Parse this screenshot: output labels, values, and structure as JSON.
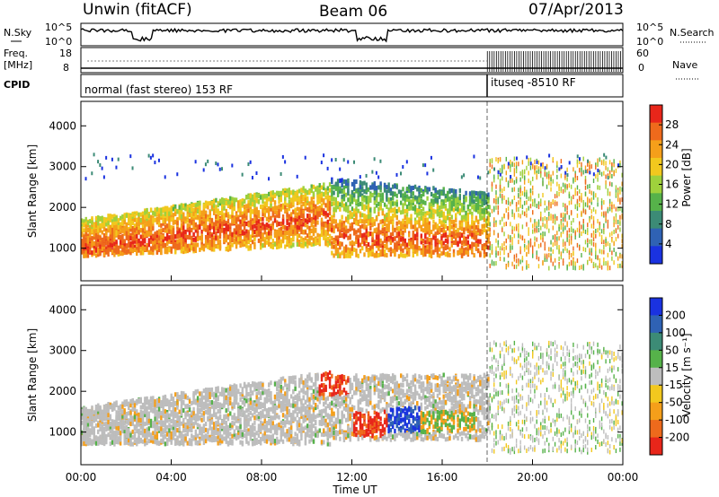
{
  "header": {
    "station": "Unwin (fitACF)",
    "beam": "Beam 06",
    "date": "07/Apr/2013"
  },
  "noise_panel": {
    "left_label": "N.Sky",
    "right_label": "N.Search",
    "left_ticks": [
      "10^5",
      "10^0"
    ],
    "right_ticks": [
      "10^5",
      "10^0"
    ]
  },
  "freq_panel": {
    "left_label_1": "Freq.",
    "left_label_2": "[MHz]",
    "right_label": "Nave",
    "left_ticks": [
      "18",
      "8"
    ],
    "right_ticks": [
      "60",
      "0"
    ]
  },
  "cpid_panel": {
    "label": "CPID",
    "mode_1": "normal (fast stereo) 153 RF",
    "mode_2": "ituseq -8510 RF"
  },
  "colors": {
    "power_scale": [
      "#1a32e0",
      "#2f62b4",
      "#3c8b76",
      "#56b24a",
      "#9fd13c",
      "#f2c81e",
      "#f59f1a",
      "#ee6a1c",
      "#e8261a"
    ],
    "velocity_scale": [
      "#1a32e0",
      "#2f62b4",
      "#3c8b76",
      "#56b24a",
      "#bdbdbd",
      "#f2c81e",
      "#f59f1a",
      "#ee6a1c",
      "#e8261a"
    ]
  },
  "chart_data": [
    {
      "type": "heatmap",
      "panel": "power",
      "ylabel": "Slant Range [km]",
      "y_ticks": [
        "1000",
        "2000",
        "3000",
        "4000"
      ],
      "ylim": [
        200,
        4600
      ],
      "xlim": [
        "00:00",
        "24:00"
      ],
      "colorbar_label": "Power [dB]",
      "colorbar_ticks": [
        "4",
        "8",
        "12",
        "16",
        "20",
        "24",
        "28"
      ],
      "colorbar_range": [
        0,
        32
      ],
      "mode_change_time": "18:00"
    },
    {
      "type": "heatmap",
      "panel": "velocity",
      "ylabel": "Slant Range [km]",
      "y_ticks": [
        "1000",
        "2000",
        "3000",
        "4000"
      ],
      "ylim": [
        200,
        4600
      ],
      "xlim": [
        "00:00",
        "24:00"
      ],
      "colorbar_label": "Velocity [m s⁻¹]",
      "colorbar_ticks": [
        "200",
        "100",
        "50",
        "15",
        "-15",
        "-50",
        "-100",
        "-200"
      ],
      "colorbar_range": [
        -250,
        250
      ],
      "x_ticks": [
        "00:00",
        "04:00",
        "08:00",
        "12:00",
        "16:00",
        "20:00",
        "00:00"
      ],
      "xlabel": "Time UT",
      "mode_change_time": "18:00"
    }
  ]
}
